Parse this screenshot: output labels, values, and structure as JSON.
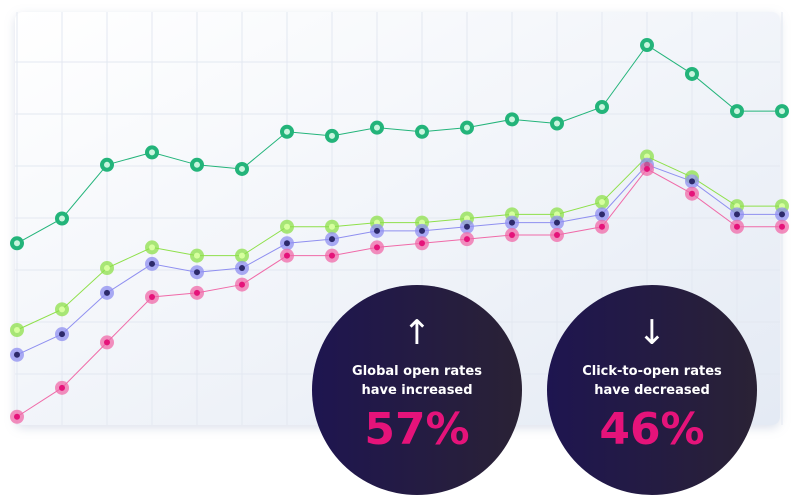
{
  "chart_data": {
    "type": "line",
    "categories": [
      null,
      null,
      null,
      null,
      null,
      null,
      null,
      null,
      null,
      null,
      null,
      null,
      null,
      null,
      null,
      null,
      null,
      null
    ],
    "ylim": [
      0,
      100
    ],
    "grid": true,
    "series": [
      {
        "color": "#23b47a",
        "values": [
          44,
          50,
          63,
          66,
          63,
          62,
          71,
          70,
          72,
          71,
          72,
          74,
          73,
          77,
          92,
          85,
          76,
          76
        ]
      },
      {
        "color": "#8ee04a",
        "values": [
          23,
          28,
          38,
          43,
          41,
          41,
          48,
          48,
          49,
          49,
          50,
          51,
          51,
          54,
          65,
          60,
          53,
          53
        ]
      },
      {
        "color": "#8f8ff0",
        "values": [
          17,
          22,
          32,
          39,
          37,
          38,
          44,
          45,
          47,
          47,
          48,
          49,
          49,
          51,
          63,
          59,
          51,
          51
        ]
      },
      {
        "color": "#f06aa8",
        "values": [
          2,
          9,
          20,
          31,
          32,
          34,
          41,
          41,
          43,
          44,
          45,
          46,
          46,
          48,
          62,
          56,
          48,
          48
        ]
      }
    ]
  },
  "callouts": [
    {
      "arrow": "↑",
      "line1": "Global open rates",
      "line2": "have increased",
      "value_label": "57%"
    },
    {
      "arrow": "↓",
      "line1": "Click-to-open rates",
      "line2": "have decreased",
      "value_label": "46%"
    }
  ]
}
